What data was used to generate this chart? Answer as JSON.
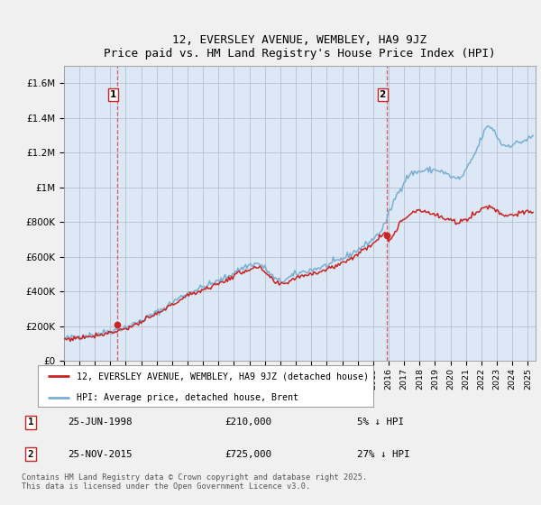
{
  "title": "12, EVERSLEY AVENUE, WEMBLEY, HA9 9JZ",
  "subtitle": "Price paid vs. HM Land Registry's House Price Index (HPI)",
  "ylabel_ticks": [
    "£0",
    "£200K",
    "£400K",
    "£600K",
    "£800K",
    "£1M",
    "£1.2M",
    "£1.4M",
    "£1.6M"
  ],
  "ytick_values": [
    0,
    200000,
    400000,
    600000,
    800000,
    1000000,
    1200000,
    1400000,
    1600000
  ],
  "ylim": [
    0,
    1700000
  ],
  "xlim_start": 1995.0,
  "xlim_end": 2025.5,
  "sale1_x": 1998.48,
  "sale1_y": 210000,
  "sale2_x": 2015.9,
  "sale2_y": 725000,
  "sale1_label": "1",
  "sale2_label": "2",
  "vline_color": "#dd4444",
  "hpi_color": "#7aafd4",
  "price_color": "#cc2222",
  "plot_bg_color": "#dce8f5",
  "bg_color": "#f0f0f0",
  "legend_line1": "12, EVERSLEY AVENUE, WEMBLEY, HA9 9JZ (detached house)",
  "legend_line2": "HPI: Average price, detached house, Brent",
  "annotation1_date": "25-JUN-1998",
  "annotation1_price": "£210,000",
  "annotation1_hpi": "5% ↓ HPI",
  "annotation2_date": "25-NOV-2015",
  "annotation2_price": "£725,000",
  "annotation2_hpi": "27% ↓ HPI",
  "footer": "Contains HM Land Registry data © Crown copyright and database right 2025.\nThis data is licensed under the Open Government Licence v3.0."
}
